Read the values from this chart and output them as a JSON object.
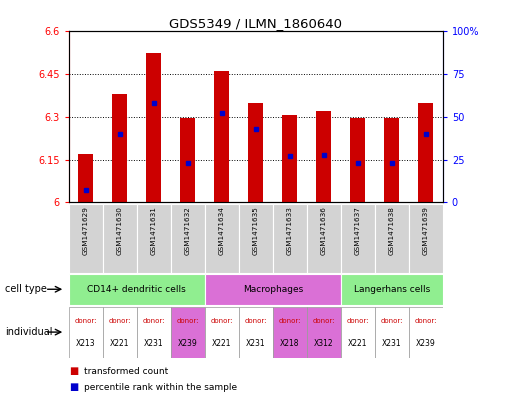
{
  "title": "GDS5349 / ILMN_1860640",
  "samples": [
    "GSM1471629",
    "GSM1471630",
    "GSM1471631",
    "GSM1471632",
    "GSM1471634",
    "GSM1471635",
    "GSM1471633",
    "GSM1471636",
    "GSM1471637",
    "GSM1471638",
    "GSM1471639"
  ],
  "transformed_count": [
    6.17,
    6.38,
    6.525,
    6.295,
    6.46,
    6.35,
    6.305,
    6.32,
    6.295,
    6.295,
    6.35
  ],
  "percentile_rank": [
    7,
    40,
    58,
    23,
    52,
    43,
    27,
    28,
    23,
    23,
    40
  ],
  "ylim_left": [
    6.0,
    6.6
  ],
  "ylim_right": [
    0,
    100
  ],
  "yticks_left": [
    6.0,
    6.15,
    6.3,
    6.45,
    6.6
  ],
  "yticks_right": [
    0,
    25,
    50,
    75,
    100
  ],
  "ytick_labels_left": [
    "6",
    "6.15",
    "6.3",
    "6.45",
    "6.6"
  ],
  "ytick_labels_right": [
    "0",
    "25",
    "50",
    "75",
    "100%"
  ],
  "cell_types": [
    {
      "label": "CD14+ dendritic cells",
      "start": 0,
      "end": 4,
      "color": "#90ee90"
    },
    {
      "label": "Macrophages",
      "start": 4,
      "end": 8,
      "color": "#da70d6"
    },
    {
      "label": "Langerhans cells",
      "start": 8,
      "end": 11,
      "color": "#90ee90"
    }
  ],
  "individuals": [
    "X213",
    "X221",
    "X231",
    "X239",
    "X221",
    "X231",
    "X218",
    "X312",
    "X221",
    "X231",
    "X239"
  ],
  "individual_colors": [
    "#ffffff",
    "#ffffff",
    "#ffffff",
    "#da70d6",
    "#ffffff",
    "#ffffff",
    "#da70d6",
    "#da70d6",
    "#ffffff",
    "#ffffff",
    "#ffffff"
  ],
  "bar_color": "#cc0000",
  "dot_color": "#0000cc",
  "gray_bg": "#d3d3d3",
  "cell_type_label_left": "cell type",
  "individual_label_left": "individual",
  "legend_items": [
    {
      "color": "#cc0000",
      "label": "transformed count"
    },
    {
      "color": "#0000cc",
      "label": "percentile rank within the sample"
    }
  ]
}
